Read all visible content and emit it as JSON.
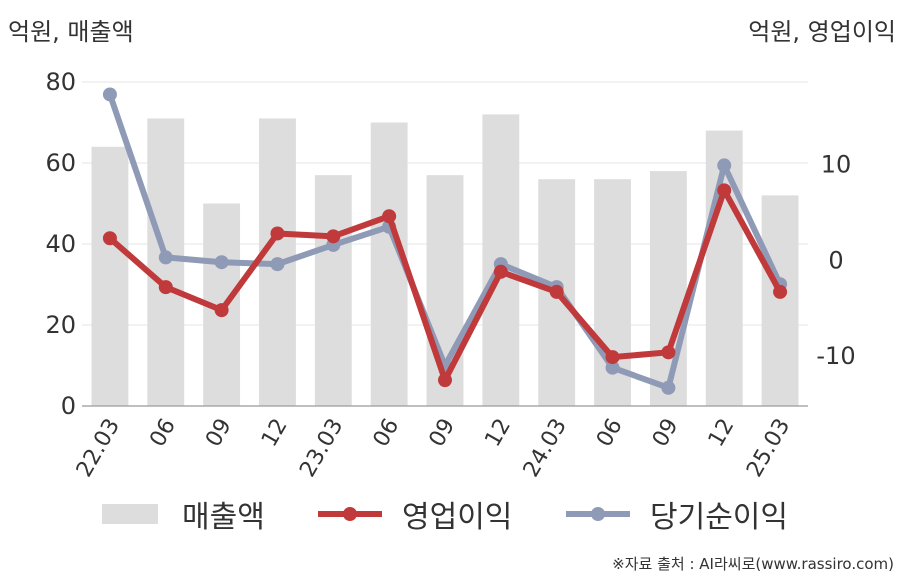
{
  "units": {
    "left": "억원, 매출액",
    "right": "억원, 영업이익"
  },
  "legend": {
    "revenue": "매출액",
    "operating": "영업이익",
    "net": "당기순이익"
  },
  "source": "※자료 출처 : AI라씨로(www.rassiro.com)",
  "colors": {
    "revenue": "#dddddd",
    "operating": "#c0393b",
    "net": "#8f9ab6"
  },
  "chart_data": {
    "type": "bar",
    "categories": [
      "22.03",
      "06",
      "09",
      "12",
      "23.03",
      "06",
      "09",
      "12",
      "24.03",
      "06",
      "09",
      "12",
      "25.03"
    ],
    "y_left_ticks": [
      "80",
      "60",
      "40",
      "20",
      "0"
    ],
    "y_right_ticks": [
      "10",
      "0",
      "-10"
    ],
    "ylim_left": [
      0,
      80
    ],
    "ylim_right": [
      -15.2,
      18.6
    ],
    "grid": true,
    "legend_position": "bottom",
    "series": [
      {
        "name": "매출액",
        "type": "bar",
        "axis": "left",
        "values": [
          64,
          71,
          50,
          71,
          57,
          70,
          57,
          72,
          56,
          56,
          58,
          68,
          52
        ]
      },
      {
        "name": "영업이익",
        "type": "line",
        "axis": "right",
        "values": [
          2.3,
          -2.8,
          -5.2,
          2.8,
          2.5,
          4.6,
          -12.5,
          -1.2,
          -3.3,
          -10.1,
          -9.6,
          7.3,
          -3.3
        ]
      },
      {
        "name": "당기순이익",
        "type": "line",
        "axis": "right",
        "values": [
          17.3,
          0.3,
          -0.2,
          -0.4,
          1.6,
          3.5,
          -11.0,
          -0.4,
          -2.8,
          -11.2,
          -13.3,
          9.9,
          -2.5
        ]
      }
    ]
  }
}
